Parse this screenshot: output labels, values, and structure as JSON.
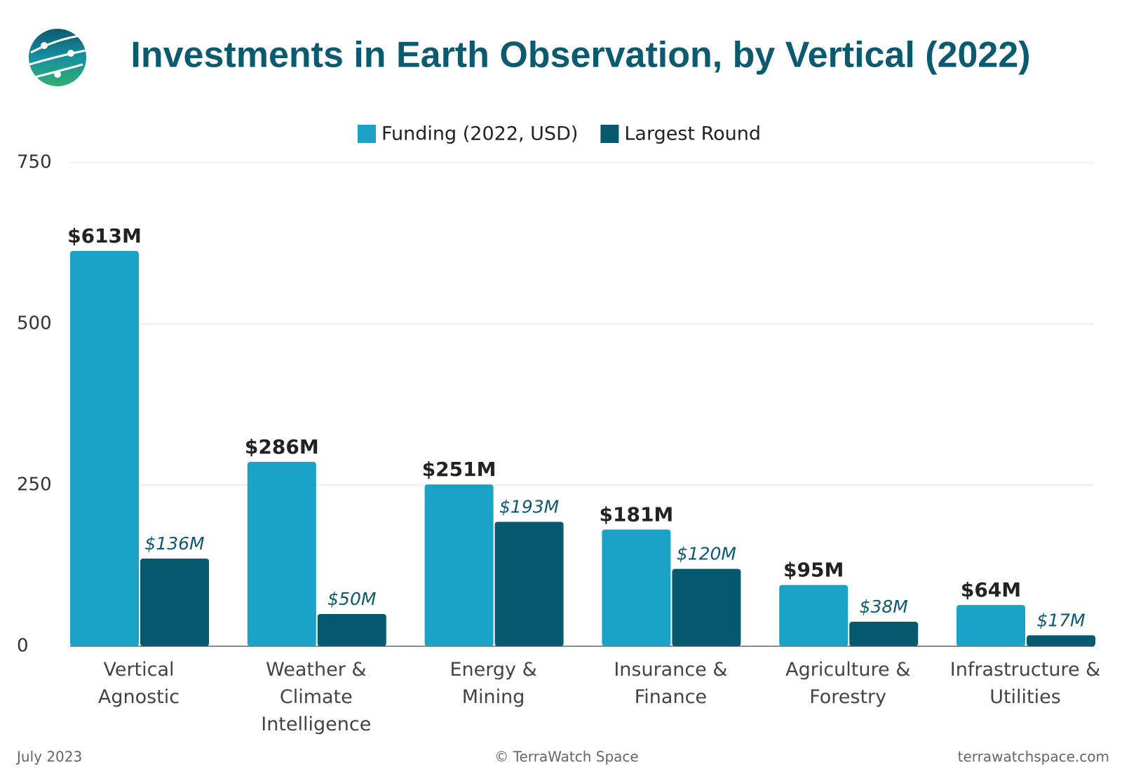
{
  "chart_data": {
    "type": "bar",
    "title": "Investments in Earth Observation, by Vertical (2022)",
    "categories": [
      "Vertical Agnostic",
      "Weather & Climate Intelligence",
      "Energy & Mining",
      "Insurance & Finance",
      "Agriculture & Forestry",
      "Infrastructure & Utilities"
    ],
    "series": [
      {
        "name": "Funding (2022, USD)",
        "color": "#1aa3c6",
        "values": [
          613,
          286,
          251,
          181,
          95,
          64
        ],
        "value_labels": [
          "$613M",
          "$286M",
          "$251M",
          "$181M",
          "$95M",
          "$64M"
        ]
      },
      {
        "name": "Largest Round",
        "color": "#055a70",
        "values": [
          136,
          50,
          193,
          120,
          38,
          17
        ],
        "value_labels": [
          "$136M",
          "$50M",
          "$193M",
          "$120M",
          "$38M",
          "$17M"
        ]
      }
    ],
    "ylim": [
      0,
      750
    ],
    "yticks": [
      0,
      250,
      500,
      750
    ],
    "grid": true,
    "legend": "top",
    "footer": {
      "left": "July 2023",
      "center": "© TerraWatch Space",
      "right": "terrawatchspace.com"
    }
  }
}
